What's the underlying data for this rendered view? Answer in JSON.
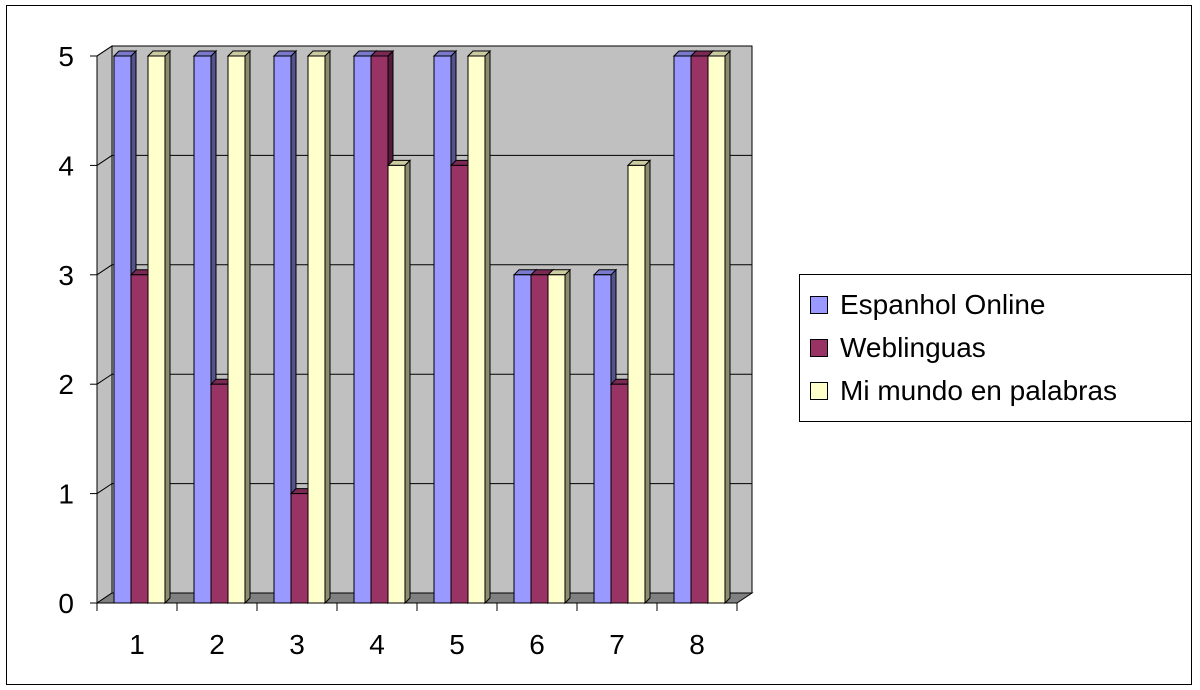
{
  "chart_data": {
    "type": "bar",
    "categories": [
      "1",
      "2",
      "3",
      "4",
      "5",
      "6",
      "7",
      "8"
    ],
    "series": [
      {
        "name": "Espanhol Online",
        "values": [
          5,
          5,
          5,
          5,
          5,
          3,
          3,
          5
        ],
        "color": "#9999ff"
      },
      {
        "name": "Weblinguas",
        "values": [
          3,
          2,
          1,
          5,
          4,
          3,
          2,
          5
        ],
        "color": "#993366"
      },
      {
        "name": "Mi mundo en palabras",
        "values": [
          5,
          5,
          5,
          4,
          5,
          3,
          4,
          5
        ],
        "color": "#ffffcc"
      }
    ],
    "y_ticks": [
      "0",
      "1",
      "2",
      "3",
      "4",
      "5"
    ],
    "ylim": [
      0,
      5
    ],
    "grid": true,
    "legend_position": "right",
    "wall_color": "#c0c0c0",
    "floor_color": "#808080"
  }
}
